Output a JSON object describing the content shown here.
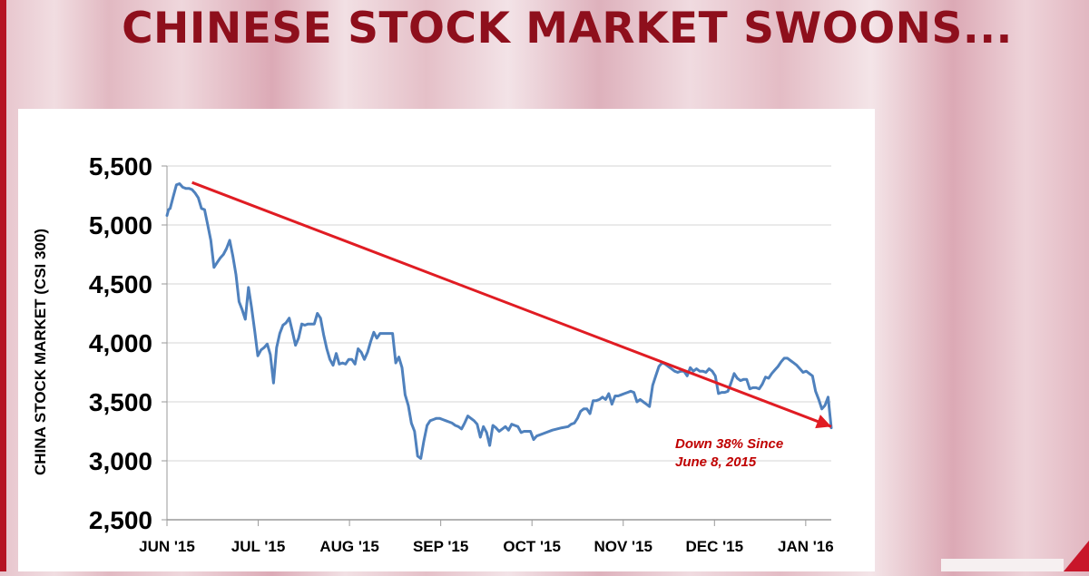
{
  "title": "CHINESE STOCK MARKET SWOONS...",
  "chart_data": {
    "type": "line",
    "ylabel": "CHINA STOCK MARKET (CSI 300)",
    "ylim": [
      2500,
      5500
    ],
    "yticks": [
      2500,
      3000,
      3500,
      4000,
      4500,
      5000,
      5500
    ],
    "ytick_labels": [
      "2,500",
      "3,000",
      "3,500",
      "4,000",
      "4,500",
      "5,000",
      "5,500"
    ],
    "xticks": [
      "JUN '15",
      "JUL '15",
      "AUG '15",
      "SEP '15",
      "OCT '15",
      "NOV '15",
      "DEC '15",
      "JAN '16"
    ],
    "grid": true,
    "series": [
      {
        "color": "#4f81bd",
        "points": [
          [
            0,
            5080
          ],
          [
            0.5,
            5130
          ],
          [
            1,
            5140
          ],
          [
            2,
            5240
          ],
          [
            3,
            5340
          ],
          [
            4,
            5350
          ],
          [
            5,
            5320
          ],
          [
            6,
            5310
          ],
          [
            7,
            5310
          ],
          [
            8,
            5300
          ],
          [
            9,
            5270
          ],
          [
            10,
            5230
          ],
          [
            11,
            5140
          ],
          [
            12,
            5130
          ],
          [
            13,
            5000
          ],
          [
            14,
            4870
          ],
          [
            15,
            4640
          ],
          [
            16,
            4680
          ],
          [
            17,
            4720
          ],
          [
            18,
            4750
          ],
          [
            19,
            4800
          ],
          [
            20,
            4870
          ],
          [
            21,
            4740
          ],
          [
            22,
            4580
          ],
          [
            23,
            4350
          ],
          [
            24,
            4280
          ],
          [
            25,
            4200
          ],
          [
            26,
            4470
          ],
          [
            27,
            4300
          ],
          [
            28,
            4100
          ],
          [
            29,
            3890
          ],
          [
            30,
            3940
          ],
          [
            31,
            3960
          ],
          [
            32,
            3990
          ],
          [
            33,
            3900
          ],
          [
            34,
            3660
          ],
          [
            35,
            3960
          ],
          [
            36,
            4080
          ],
          [
            37,
            4150
          ],
          [
            38,
            4170
          ],
          [
            39,
            4210
          ],
          [
            40,
            4100
          ],
          [
            41,
            3980
          ],
          [
            42,
            4040
          ],
          [
            43,
            4160
          ],
          [
            44,
            4150
          ],
          [
            45,
            4160
          ],
          [
            46,
            4160
          ],
          [
            47,
            4160
          ],
          [
            48,
            4250
          ],
          [
            49,
            4210
          ],
          [
            50,
            4070
          ],
          [
            51,
            3950
          ],
          [
            52,
            3860
          ],
          [
            53,
            3810
          ],
          [
            54,
            3910
          ],
          [
            55,
            3820
          ],
          [
            56,
            3830
          ],
          [
            57,
            3820
          ],
          [
            58,
            3860
          ],
          [
            59,
            3860
          ],
          [
            60,
            3820
          ],
          [
            61,
            3950
          ],
          [
            62,
            3920
          ],
          [
            63,
            3860
          ],
          [
            64,
            3920
          ],
          [
            65,
            4010
          ],
          [
            66,
            4090
          ],
          [
            67,
            4040
          ],
          [
            68,
            4080
          ],
          [
            69,
            4080
          ],
          [
            70,
            4080
          ],
          [
            71,
            4080
          ],
          [
            72,
            4080
          ],
          [
            73,
            3830
          ],
          [
            74,
            3880
          ],
          [
            75,
            3790
          ],
          [
            76,
            3560
          ],
          [
            77,
            3470
          ],
          [
            78,
            3320
          ],
          [
            79,
            3250
          ],
          [
            80,
            3040
          ],
          [
            81,
            3020
          ],
          [
            82,
            3170
          ],
          [
            83,
            3300
          ],
          [
            84,
            3340
          ],
          [
            85,
            3350
          ],
          [
            86,
            3360
          ],
          [
            87,
            3360
          ],
          [
            88,
            3350
          ],
          [
            89,
            3340
          ],
          [
            90,
            3330
          ],
          [
            91,
            3320
          ],
          [
            92,
            3300
          ],
          [
            93,
            3290
          ],
          [
            94,
            3270
          ],
          [
            95,
            3320
          ],
          [
            96,
            3380
          ],
          [
            97,
            3360
          ],
          [
            98,
            3340
          ],
          [
            99,
            3310
          ],
          [
            100,
            3200
          ],
          [
            101,
            3290
          ],
          [
            102,
            3240
          ],
          [
            103,
            3130
          ],
          [
            104,
            3300
          ],
          [
            105,
            3280
          ],
          [
            106,
            3250
          ],
          [
            107,
            3270
          ],
          [
            108,
            3290
          ],
          [
            109,
            3260
          ],
          [
            110,
            3310
          ],
          [
            111,
            3300
          ],
          [
            112,
            3290
          ],
          [
            113,
            3240
          ],
          [
            114,
            3250
          ],
          [
            115,
            3250
          ],
          [
            116,
            3250
          ],
          [
            117,
            3180
          ],
          [
            118,
            3210
          ],
          [
            120,
            3230
          ],
          [
            123,
            3260
          ],
          [
            126,
            3280
          ],
          [
            128,
            3290
          ],
          [
            129,
            3310
          ],
          [
            130,
            3320
          ],
          [
            131,
            3360
          ],
          [
            132,
            3420
          ],
          [
            133,
            3440
          ],
          [
            134,
            3440
          ],
          [
            135,
            3400
          ],
          [
            136,
            3510
          ],
          [
            137,
            3510
          ],
          [
            138,
            3520
          ],
          [
            139,
            3540
          ],
          [
            140,
            3520
          ],
          [
            141,
            3570
          ],
          [
            142,
            3480
          ],
          [
            143,
            3550
          ],
          [
            144,
            3550
          ],
          [
            145,
            3560
          ],
          [
            146,
            3570
          ],
          [
            147,
            3580
          ],
          [
            148,
            3590
          ],
          [
            149,
            3580
          ],
          [
            150,
            3500
          ],
          [
            151,
            3520
          ],
          [
            152,
            3500
          ],
          [
            153,
            3480
          ],
          [
            154,
            3460
          ],
          [
            155,
            3640
          ],
          [
            156,
            3720
          ],
          [
            157,
            3800
          ],
          [
            158,
            3830
          ],
          [
            159,
            3820
          ],
          [
            160,
            3800
          ],
          [
            161,
            3780
          ],
          [
            162,
            3760
          ],
          [
            163,
            3750
          ],
          [
            164,
            3760
          ],
          [
            165,
            3760
          ],
          [
            166,
            3720
          ],
          [
            167,
            3790
          ],
          [
            168,
            3760
          ],
          [
            169,
            3780
          ],
          [
            170,
            3760
          ],
          [
            171,
            3760
          ],
          [
            172,
            3750
          ],
          [
            173,
            3780
          ],
          [
            174,
            3760
          ],
          [
            175,
            3720
          ],
          [
            176,
            3570
          ],
          [
            177,
            3580
          ],
          [
            178,
            3580
          ],
          [
            179,
            3590
          ],
          [
            180,
            3660
          ],
          [
            181,
            3740
          ],
          [
            182,
            3700
          ],
          [
            183,
            3680
          ],
          [
            184,
            3690
          ],
          [
            185,
            3690
          ],
          [
            186,
            3610
          ],
          [
            187,
            3620
          ],
          [
            188,
            3620
          ],
          [
            189,
            3610
          ],
          [
            190,
            3650
          ],
          [
            191,
            3710
          ],
          [
            192,
            3700
          ],
          [
            193,
            3740
          ],
          [
            194,
            3770
          ],
          [
            195,
            3800
          ],
          [
            196,
            3840
          ],
          [
            197,
            3870
          ],
          [
            198,
            3870
          ],
          [
            199,
            3850
          ],
          [
            200,
            3830
          ],
          [
            201,
            3810
          ],
          [
            202,
            3780
          ],
          [
            203,
            3750
          ],
          [
            204,
            3760
          ],
          [
            205,
            3740
          ],
          [
            206,
            3720
          ],
          [
            207,
            3590
          ],
          [
            208,
            3520
          ],
          [
            209,
            3440
          ],
          [
            210,
            3470
          ],
          [
            211,
            3540
          ],
          [
            212,
            3280
          ]
        ]
      }
    ],
    "trend": {
      "color": "#e01c23",
      "from": [
        8,
        5360
      ],
      "to": [
        212,
        3290
      ]
    },
    "annotation": {
      "line1": "Down 38% Since",
      "line2": "June 8, 2015",
      "color": "#c00000"
    }
  }
}
